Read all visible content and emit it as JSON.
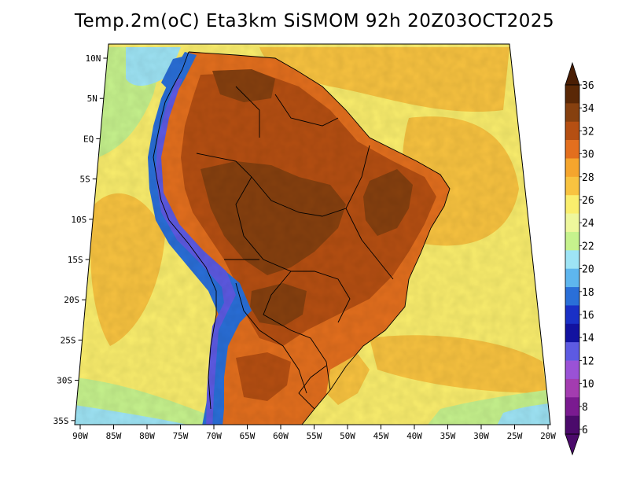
{
  "title": "Temp.2m(oC) Eta3km SiSMOM 92h 20Z03OCT2025",
  "axes": {
    "lat_labels": [
      "10N",
      "5N",
      "EQ",
      "5S",
      "10S",
      "15S",
      "20S",
      "25S",
      "30S",
      "35S"
    ],
    "lon_labels": [
      "90W",
      "85W",
      "80W",
      "75W",
      "70W",
      "65W",
      "60W",
      "55W",
      "50W",
      "45W",
      "40W",
      "35W",
      "30W",
      "25W",
      "20W"
    ]
  },
  "colorbar": {
    "labels": [
      "36",
      "34",
      "32",
      "30",
      "28",
      "26",
      "24",
      "22",
      "20",
      "18",
      "16",
      "14",
      "12",
      "10",
      "8",
      "6"
    ],
    "colors": [
      "#5a2806",
      "#86400f",
      "#b54f12",
      "#e36f1e",
      "#f5a52d",
      "#f8c340",
      "#faee6d",
      "#eef79c",
      "#c6f28d",
      "#9ee4f5",
      "#5eb6ee",
      "#2a6fd8",
      "#1a30c6",
      "#1212a0",
      "#5d5ae2",
      "#9a52d6",
      "#a33cb0",
      "#7a1a90",
      "#4b0a6b"
    ],
    "top_arrow_color": "#4a1e04",
    "bottom_arrow_color": "#4b0a6b"
  },
  "map_colors": {
    "ocean_cool": "#9ee4f5",
    "ocean_mild": "#c6f28d",
    "ocean_warm": "#faee6d",
    "ocean_hot": "#f8c340",
    "land_warm": "#e36f1e",
    "land_hot": "#b54f12",
    "land_extreme": "#86400f",
    "andes_cold": "#2a6fd8",
    "andes_very_cold": "#5d5ae2",
    "border": "#000000"
  }
}
